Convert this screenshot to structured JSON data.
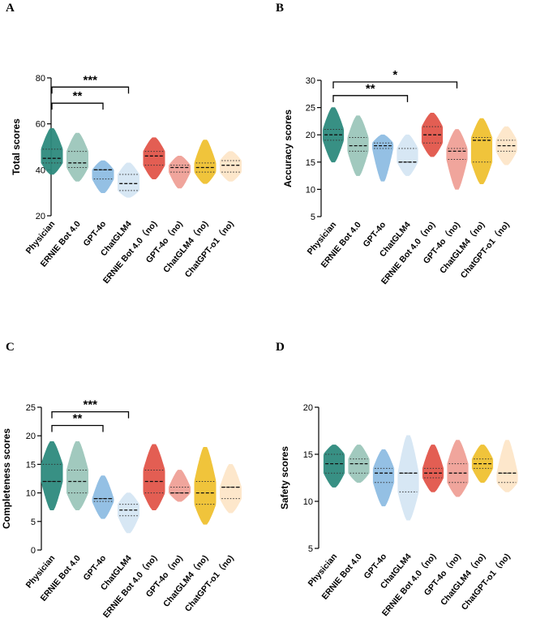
{
  "colors": [
    "#2e8b7e",
    "#9cc7bb",
    "#8fbde3",
    "#d5e6f4",
    "#e2564a",
    "#f0a197",
    "#f0c131",
    "#fde6c9"
  ],
  "chart_data": [
    {
      "type": "violin",
      "panel": "A",
      "ylabel": "Total scores",
      "ylim": [
        20,
        80
      ],
      "yticks": [
        20,
        40,
        60,
        80
      ],
      "categories": [
        "Physician",
        "ERNIE Bot 4.0",
        "GPT-4o",
        "ChatGLM4",
        "ERNIE Bot 4.0（no)",
        "GPT-4o（no)",
        "ChatGLM4（no)",
        "ChatGPT-o1（no)"
      ],
      "range": [
        [
          38,
          58
        ],
        [
          35,
          56
        ],
        [
          30,
          44
        ],
        [
          28,
          43
        ],
        [
          36,
          54
        ],
        [
          32,
          46
        ],
        [
          34,
          53
        ],
        [
          35,
          48
        ]
      ],
      "quartiles": [
        [
          43,
          45,
          49
        ],
        [
          41,
          43,
          48
        ],
        [
          36,
          40,
          40
        ],
        [
          31,
          34,
          38
        ],
        [
          42,
          46,
          48
        ],
        [
          39,
          41,
          42
        ],
        [
          39,
          41,
          43
        ],
        [
          39,
          42,
          44
        ]
      ],
      "significance": [
        {
          "from": 0,
          "to": 2,
          "label": "**",
          "at": 69
        },
        {
          "from": 0,
          "to": 3,
          "label": "***",
          "at": 76
        }
      ]
    },
    {
      "type": "violin",
      "panel": "B",
      "ylabel": "Accuracy scores",
      "ylim": [
        5,
        30
      ],
      "yticks": [
        5,
        10,
        15,
        20,
        25,
        30
      ],
      "categories": [
        "Physician",
        "ERNIE Bot 4.0",
        "GPT-4o",
        "ChatGLM4",
        "ERNIE Bot 4.0（no)",
        "GPT-4o（no)",
        "ChatGLM4（no)",
        "ChatGPT-o1（no)"
      ],
      "range": [
        [
          15,
          25
        ],
        [
          12.5,
          23.5
        ],
        [
          11.5,
          20
        ],
        [
          12.5,
          20
        ],
        [
          16,
          24
        ],
        [
          10,
          21
        ],
        [
          11,
          23
        ],
        [
          14.5,
          21.5
        ]
      ],
      "quartiles": [
        [
          19,
          20,
          21
        ],
        [
          17,
          18,
          19.5
        ],
        [
          17.5,
          18,
          18.5
        ],
        [
          15,
          15,
          17.5
        ],
        [
          18.5,
          20,
          21.5
        ],
        [
          15.5,
          17,
          17.5
        ],
        [
          15,
          19,
          19.5
        ],
        [
          17,
          18,
          19
        ]
      ],
      "significance": [
        {
          "from": 0,
          "to": 3,
          "label": "**",
          "at": 27.2
        },
        {
          "from": 0,
          "to": 5,
          "label": "*",
          "at": 29.7
        }
      ]
    },
    {
      "type": "violin",
      "panel": "C",
      "ylabel": "Completeness scores",
      "ylim": [
        0,
        25
      ],
      "yticks": [
        0,
        5,
        10,
        15,
        20,
        25
      ],
      "categories": [
        "Physician",
        "ERNIE Bot 4.0",
        "GPT-4o",
        "ChatGLM4",
        "ERNIE Bot 4.0（no)",
        "GPT-4o（no)",
        "ChatGLM4（no)",
        "ChatGPT-o1（no)"
      ],
      "range": [
        [
          7,
          19
        ],
        [
          7,
          19
        ],
        [
          5.5,
          13
        ],
        [
          3,
          10
        ],
        [
          7,
          18.5
        ],
        [
          8.5,
          14
        ],
        [
          4.5,
          18
        ],
        [
          6.5,
          15
        ]
      ],
      "quartiles": [
        [
          12,
          12,
          15
        ],
        [
          10,
          12,
          14
        ],
        [
          8.5,
          9,
          9
        ],
        [
          6,
          7,
          8
        ],
        [
          10,
          12,
          14
        ],
        [
          10,
          10,
          11
        ],
        [
          8,
          10,
          12
        ],
        [
          9,
          11,
          11
        ]
      ],
      "significance": [
        {
          "from": 0,
          "to": 2,
          "label": "**",
          "at": 21.8
        },
        {
          "from": 0,
          "to": 3,
          "label": "***",
          "at": 24.2
        }
      ]
    },
    {
      "type": "violin",
      "panel": "D",
      "ylabel": "Safety scores",
      "ylim": [
        5,
        20
      ],
      "yticks": [
        5,
        10,
        15,
        20
      ],
      "categories": [
        "Physician",
        "ERNIE Bot 4.0",
        "GPT-4o",
        "ChatGLM4",
        "ERNIE Bot 4.0（no)",
        "GPT-4o（no)",
        "ChatGLM4（no)",
        "ChatGPT-o1（no)"
      ],
      "range": [
        [
          11.5,
          16
        ],
        [
          12,
          16
        ],
        [
          9.5,
          15.5
        ],
        [
          8,
          17
        ],
        [
          11,
          16
        ],
        [
          10.5,
          16.5
        ],
        [
          12,
          16
        ],
        [
          11,
          16.5
        ]
      ],
      "quartiles": [
        [
          13,
          14,
          15
        ],
        [
          13,
          14,
          14.5
        ],
        [
          12,
          13,
          13.5
        ],
        [
          11,
          13,
          13
        ],
        [
          12.5,
          13,
          13.5
        ],
        [
          12,
          13,
          14
        ],
        [
          13.5,
          14,
          14.5
        ],
        [
          12,
          13,
          13
        ]
      ],
      "significance": []
    }
  ]
}
